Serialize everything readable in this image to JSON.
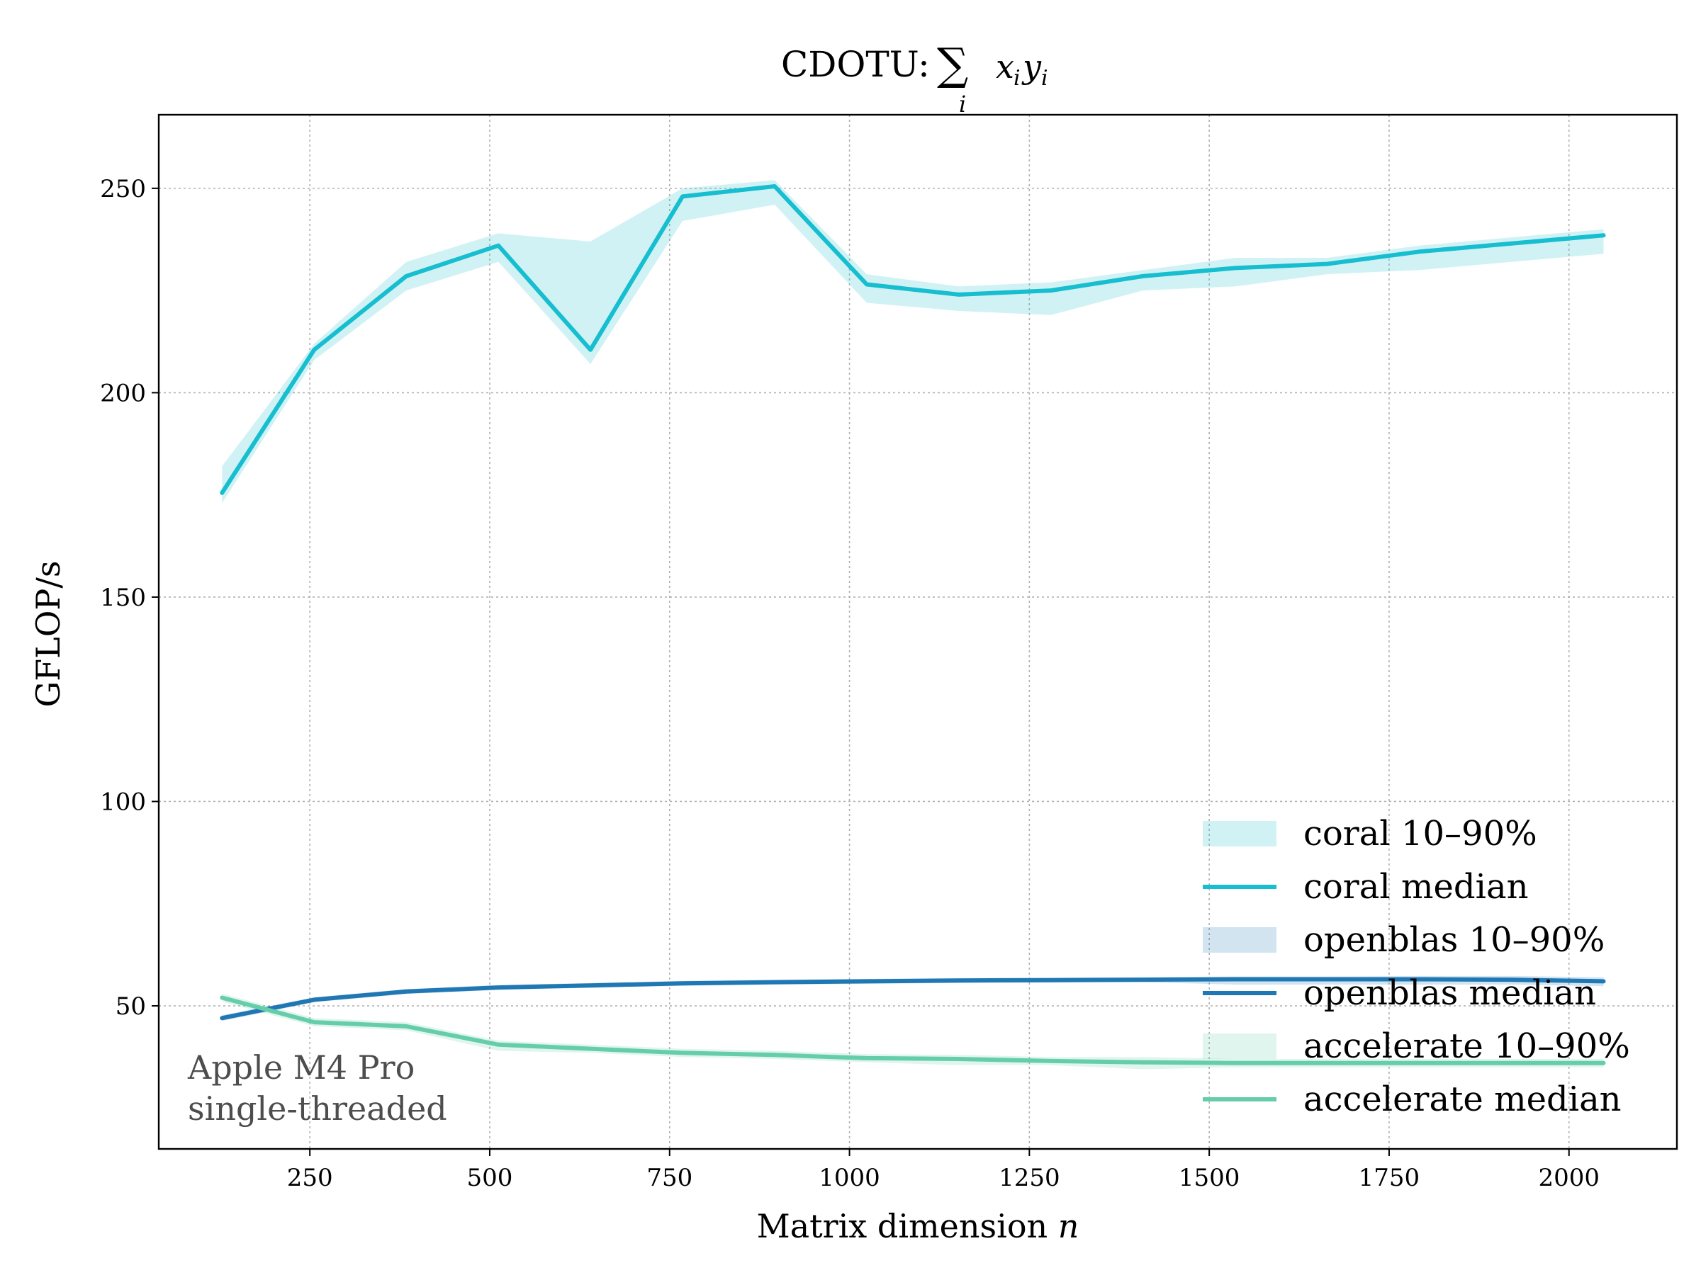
{
  "chart_data": {
    "type": "line",
    "title_prefix": "CDOTU: ",
    "title_math": "Σ_i x_i y_i",
    "xlabel": "Matrix dimension",
    "xlabel_var": "n",
    "ylabel": "GFLOP/s",
    "xlim": [
      40,
      2150
    ],
    "ylim": [
      15,
      268
    ],
    "xticks": [
      250,
      500,
      750,
      1000,
      1250,
      1500,
      1750,
      2000
    ],
    "yticks": [
      50,
      100,
      150,
      200,
      250
    ],
    "grid": true,
    "legend_position": "lower-right",
    "annotation": [
      "Apple M4 Pro",
      "single-threaded"
    ],
    "x": [
      128,
      256,
      384,
      512,
      640,
      768,
      896,
      1024,
      1152,
      1280,
      1408,
      1536,
      1664,
      1792,
      1920,
      2048
    ],
    "series": [
      {
        "name": "coral",
        "color": "#17becf",
        "median": [
          175.5,
          210.5,
          228.5,
          236,
          210.5,
          248,
          250.5,
          226.5,
          224,
          225,
          228.5,
          230.5,
          231.5,
          234.5,
          236.5,
          238.5
        ],
        "p10": [
          173,
          208,
          225,
          232,
          207,
          242,
          246,
          222,
          220,
          219,
          225,
          226,
          229,
          230,
          232,
          234
        ],
        "p90": [
          182,
          212,
          232,
          239,
          237,
          250,
          252,
          229,
          226,
          227,
          230,
          233,
          233,
          236,
          238,
          240
        ]
      },
      {
        "name": "openblas",
        "color": "#1f77b4",
        "median": [
          47,
          51.5,
          53.5,
          54.5,
          55,
          55.5,
          55.8,
          56,
          56.2,
          56.3,
          56.4,
          56.5,
          56.5,
          56.5,
          56.4,
          56
        ],
        "p10": [
          46.3,
          50.9,
          52.9,
          53.9,
          54.4,
          54.9,
          55.2,
          55.4,
          55.6,
          55.7,
          55.8,
          55.2,
          55.2,
          55.2,
          55.2,
          54.8
        ],
        "p90": [
          47.7,
          52.1,
          54.1,
          55.1,
          55.6,
          56.1,
          56.4,
          56.6,
          56.8,
          56.9,
          57,
          57.2,
          57.2,
          57.3,
          57.3,
          57
        ]
      },
      {
        "name": "accelerate",
        "color": "#66cdaa",
        "median": [
          52,
          46,
          45,
          40.5,
          39.5,
          38.5,
          38,
          37.2,
          37,
          36.5,
          36.2,
          36,
          36,
          36,
          36,
          36
        ],
        "p10": [
          51,
          45,
          44,
          39,
          38.5,
          37.5,
          37,
          36.2,
          35.5,
          35.5,
          34.5,
          35,
          35,
          35,
          35,
          35
        ],
        "p90": [
          53,
          47,
          46,
          41.5,
          40.5,
          39.5,
          39,
          38.2,
          38,
          37.5,
          37.5,
          37,
          37,
          37,
          37,
          37
        ]
      }
    ],
    "legend": [
      {
        "label": "coral 10–90%",
        "series": "coral",
        "kind": "band"
      },
      {
        "label": "coral median",
        "series": "coral",
        "kind": "line"
      },
      {
        "label": "openblas 10–90%",
        "series": "openblas",
        "kind": "band"
      },
      {
        "label": "openblas median",
        "series": "openblas",
        "kind": "line"
      },
      {
        "label": "accelerate 10–90%",
        "series": "accelerate",
        "kind": "band"
      },
      {
        "label": "accelerate median",
        "series": "accelerate",
        "kind": "line"
      }
    ]
  }
}
